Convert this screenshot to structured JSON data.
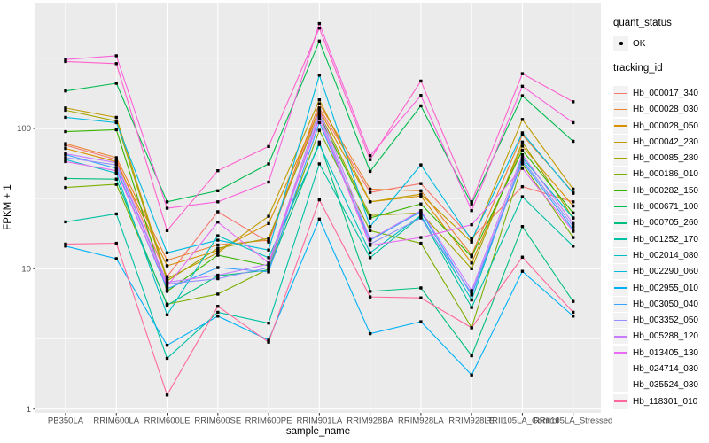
{
  "figure": {
    "x_axis_title": "sample_name",
    "y_axis_title": "FPKM + 1",
    "legend": {
      "quant_status_title": "quant_status",
      "quant_status_items": [
        {
          "label": "OK",
          "marker": "black-point"
        }
      ],
      "tracking_id_title": "tracking_id"
    }
  },
  "chart_data": {
    "type": "line",
    "title": "",
    "xlabel": "sample_name",
    "ylabel": "FPKM + 1",
    "y_scale": "log10",
    "ylim": [
      0.94,
      790
    ],
    "y_ticks": [
      1,
      10,
      100
    ],
    "y_minor_ticks": [
      3.162,
      31.62,
      316.2
    ],
    "grid": "on",
    "legend_position": "right",
    "panel_bg": "#EBEBEB",
    "grid_color": "#FFFFFF",
    "point_color": "#000000",
    "point_shape": "filled-square",
    "categories": [
      "PB350LA",
      "RRIM600LA",
      "RRIM600LE",
      "RRIM600SE",
      "RRIM600PE",
      "RRIM901LA",
      "RRIM928BA",
      "RRIM928LA",
      "RRIM928LE",
      "RRII105LA_Control",
      "RRII105LA_Stressed"
    ],
    "series": [
      {
        "name": "Hb_000017_340",
        "color": "#F8766D",
        "values": [
          76,
          60,
          8.8,
          25.5,
          15.5,
          140,
          35,
          40.5,
          16.5,
          38.5,
          30
        ]
      },
      {
        "name": "Hb_000028_030",
        "color": "#EA8331",
        "values": [
          78,
          62,
          11.5,
          14.8,
          16,
          150,
          37,
          36,
          12.5,
          90,
          35
        ]
      },
      {
        "name": "Hb_000028_050",
        "color": "#D89000",
        "values": [
          72,
          58,
          10.5,
          13.5,
          21,
          135,
          30,
          33,
          11,
          75,
          28
        ]
      },
      {
        "name": "Hb_000042_230",
        "color": "#C09B00",
        "values": [
          140,
          120,
          8.5,
          13,
          23.7,
          160,
          30,
          34,
          15.5,
          116,
          37
        ]
      },
      {
        "name": "Hb_000085_280",
        "color": "#A3A500",
        "values": [
          135,
          113,
          8.2,
          14,
          16.5,
          130,
          24,
          25,
          10,
          80,
          23
        ]
      },
      {
        "name": "Hb_000186_010",
        "color": "#7CAE00",
        "values": [
          38,
          40,
          5.6,
          6.6,
          10,
          97,
          18.7,
          15.2,
          3.8,
          56,
          16.7
        ]
      },
      {
        "name": "Hb_000282_150",
        "color": "#39B600",
        "values": [
          95,
          98,
          6.9,
          12.5,
          10.5,
          123,
          23,
          29,
          12.2,
          70,
          25
        ]
      },
      {
        "name": "Hb_000671_100",
        "color": "#00BB4E",
        "values": [
          185,
          210,
          30,
          36,
          56,
          420,
          49.5,
          145,
          29,
          171,
          81
        ]
      },
      {
        "name": "Hb_000705_260",
        "color": "#00BF7D",
        "values": [
          44,
          43.5,
          5.5,
          8.9,
          9.8,
          80,
          6.9,
          7.3,
          2.4,
          20,
          5.85
        ]
      },
      {
        "name": "Hb_001252_170",
        "color": "#00C1A3",
        "values": [
          21.6,
          24.6,
          2.3,
          4.9,
          4.1,
          56,
          12,
          23.7,
          5.3,
          32.6,
          14.5
        ]
      },
      {
        "name": "Hb_002014_080",
        "color": "#00BFC4",
        "values": [
          60,
          48,
          4.7,
          17.2,
          12,
          77,
          13,
          24,
          6.0,
          62,
          23
        ]
      },
      {
        "name": "Hb_002290_060",
        "color": "#00BAE0",
        "values": [
          120,
          110,
          13,
          16,
          13.6,
          240,
          20,
          55,
          16,
          93,
          34.5
        ]
      },
      {
        "name": "Hb_002955_010",
        "color": "#00B0F6",
        "values": [
          14.5,
          11.8,
          2.85,
          4.6,
          3.1,
          22.6,
          3.45,
          4.2,
          1.75,
          9.6,
          4.6
        ]
      },
      {
        "name": "Hb_003050_040",
        "color": "#35A2FF",
        "values": [
          65,
          52,
          7.2,
          10.2,
          9.5,
          110,
          16,
          25.5,
          6.5,
          58,
          19
        ]
      },
      {
        "name": "Hb_003352_050",
        "color": "#9590FF",
        "values": [
          62,
          55,
          7.8,
          8.5,
          10.2,
          125,
          15,
          23,
          6.7,
          60,
          20
        ]
      },
      {
        "name": "Hb_005288_120",
        "color": "#C77CFF",
        "values": [
          66,
          57,
          8.0,
          9.0,
          10.8,
          134,
          16.2,
          26,
          7.0,
          65,
          21
        ]
      },
      {
        "name": "Hb_013405_130",
        "color": "#E76BF3",
        "values": [
          58,
          50,
          7.5,
          21.5,
          11,
          118,
          14.7,
          16.7,
          20.6,
          52,
          18.5
        ]
      },
      {
        "name": "Hb_024714_030",
        "color": "#FA62DB",
        "values": [
          310,
          330,
          27,
          30,
          41.5,
          560,
          64,
          172,
          26,
          200,
          110
        ]
      },
      {
        "name": "Hb_035524_030",
        "color": "#FF61CC",
        "values": [
          300,
          290,
          18.7,
          50,
          74.5,
          520,
          60,
          218,
          30,
          246,
          155
        ]
      },
      {
        "name": "Hb_118301_010",
        "color": "#FF689E",
        "values": [
          15,
          15.2,
          1.26,
          5.4,
          3.0,
          31,
          6.3,
          6.2,
          3.8,
          12.1,
          4.9
        ]
      }
    ]
  }
}
